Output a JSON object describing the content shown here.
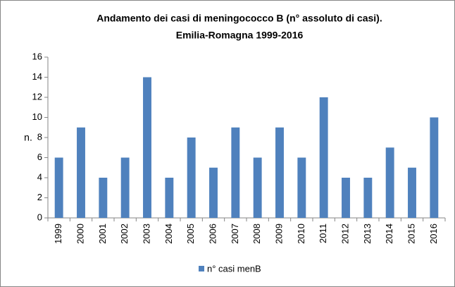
{
  "chart_data": {
    "type": "bar",
    "title": [
      "Andamento dei casi di meningococco B  (n° assoluto di casi).",
      "Emilia-Romagna 1999-2016"
    ],
    "y_label": "n.",
    "categories": [
      "1999",
      "2000",
      "2001",
      "2002",
      "2003",
      "2004",
      "2005",
      "2006",
      "2007",
      "2008",
      "2009",
      "2010",
      "2011",
      "2012",
      "2013",
      "2014",
      "2015",
      "2016"
    ],
    "series": [
      {
        "name": "n° casi menB",
        "color": "#4f81bd",
        "values": [
          6,
          9,
          4,
          6,
          14,
          4,
          8,
          5,
          9,
          6,
          9,
          6,
          12,
          4,
          4,
          7,
          5,
          10
        ]
      }
    ],
    "ylim": [
      0,
      16
    ],
    "yticks": [
      0,
      2,
      4,
      6,
      8,
      10,
      12,
      14,
      16
    ],
    "grid": false,
    "legend": "bottom"
  }
}
